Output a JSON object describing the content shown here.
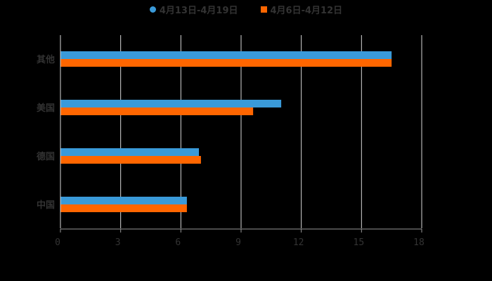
{
  "chart_data": {
    "type": "bar",
    "orientation": "horizontal",
    "title": "",
    "xlabel": "",
    "ylabel": "",
    "categories": [
      "其他",
      "美国",
      "德国",
      "中国"
    ],
    "series": [
      {
        "name": "4月13日-4月19日",
        "color": "#3a9ad9",
        "values": [
          16.5,
          11.0,
          6.9,
          6.3
        ]
      },
      {
        "name": "4月6日-4月12日",
        "color": "#ff6600",
        "values": [
          16.5,
          9.6,
          7.0,
          6.3
        ]
      }
    ],
    "xlim": [
      0,
      18
    ],
    "x_ticks": [
      "0",
      "3",
      "6",
      "9",
      "12",
      "15",
      "18"
    ],
    "grid": true,
    "legend_position": "top"
  },
  "legend": {
    "items": [
      {
        "label": "4月13日-4月19日",
        "color": "#3a9ad9"
      },
      {
        "label": "4月6日-4月12日",
        "color": "#ff6600"
      }
    ]
  }
}
